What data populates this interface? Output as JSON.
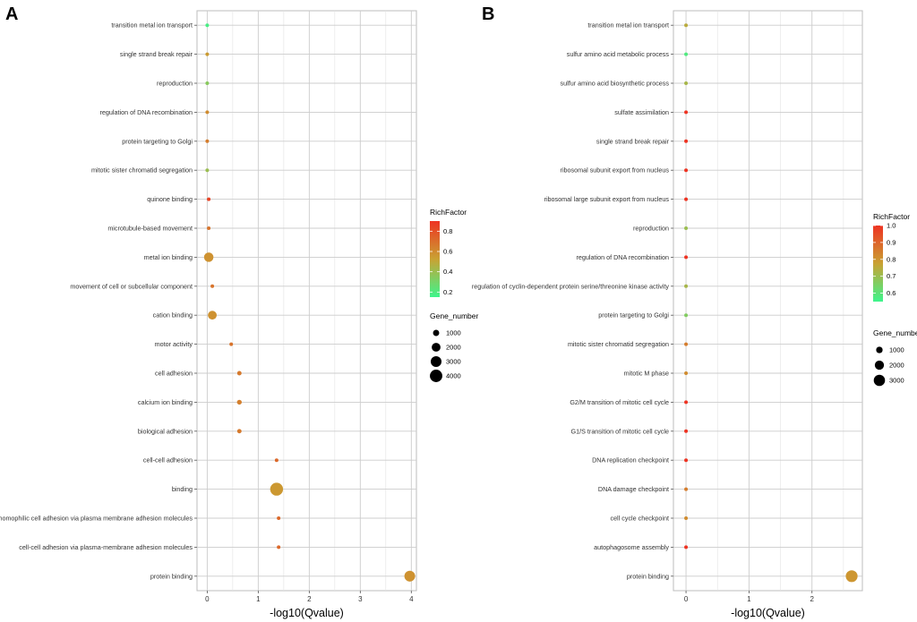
{
  "chart_data": [
    {
      "panel": "A",
      "type": "scatter",
      "xlabel": "-log10(Qvalue)",
      "ylabel": "",
      "xlim": [
        -0.2,
        4.1
      ],
      "xticks": [
        0,
        1,
        2,
        3,
        4
      ],
      "categories": [
        "transition metal ion transport",
        "single strand break repair",
        "reproduction",
        "regulation of DNA recombination",
        "protein targeting to Golgi",
        "mitotic sister chromatid segregation",
        "quinone binding",
        "microtubule-based movement",
        "metal ion binding",
        "movement of cell or subcellular component",
        "cation binding",
        "motor activity",
        "cell adhesion",
        "calcium ion binding",
        "biological adhesion",
        "cell-cell adhesion",
        "binding",
        "homophilic cell adhesion via plasma membrane adhesion molecules",
        "cell-cell adhesion via plasma-membrane adhesion molecules",
        "protein binding"
      ],
      "points": [
        {
          "term": "transition metal ion transport",
          "x": 0.0,
          "rich_factor": 0.18,
          "gene_number": 120
        },
        {
          "term": "single strand break repair",
          "x": 0.0,
          "rich_factor": 0.55,
          "gene_number": 120
        },
        {
          "term": "reproduction",
          "x": 0.0,
          "rich_factor": 0.35,
          "gene_number": 120
        },
        {
          "term": "regulation of DNA recombination",
          "x": 0.0,
          "rich_factor": 0.6,
          "gene_number": 120
        },
        {
          "term": "protein targeting to Golgi",
          "x": 0.0,
          "rich_factor": 0.65,
          "gene_number": 120
        },
        {
          "term": "mitotic sister chromatid segregation",
          "x": 0.0,
          "rich_factor": 0.4,
          "gene_number": 120
        },
        {
          "term": "quinone binding",
          "x": 0.03,
          "rich_factor": 0.85,
          "gene_number": 200
        },
        {
          "term": "microtubule-based movement",
          "x": 0.03,
          "rich_factor": 0.68,
          "gene_number": 200
        },
        {
          "term": "metal ion binding",
          "x": 0.03,
          "rich_factor": 0.58,
          "gene_number": 2300
        },
        {
          "term": "movement of cell or subcellular component",
          "x": 0.1,
          "rich_factor": 0.68,
          "gene_number": 250
        },
        {
          "term": "cation binding",
          "x": 0.1,
          "rich_factor": 0.58,
          "gene_number": 2000
        },
        {
          "term": "motor activity",
          "x": 0.47,
          "rich_factor": 0.68,
          "gene_number": 250
        },
        {
          "term": "cell adhesion",
          "x": 0.63,
          "rich_factor": 0.66,
          "gene_number": 500
        },
        {
          "term": "calcium ion binding",
          "x": 0.63,
          "rich_factor": 0.64,
          "gene_number": 600
        },
        {
          "term": "biological adhesion",
          "x": 0.63,
          "rich_factor": 0.66,
          "gene_number": 500
        },
        {
          "term": "cell-cell adhesion",
          "x": 1.36,
          "rich_factor": 0.72,
          "gene_number": 250
        },
        {
          "term": "binding",
          "x": 1.36,
          "rich_factor": 0.56,
          "gene_number": 4300
        },
        {
          "term": "homophilic cell adhesion via plasma membrane adhesion molecules",
          "x": 1.4,
          "rich_factor": 0.72,
          "gene_number": 250
        },
        {
          "term": "cell-cell adhesion via plasma-membrane adhesion molecules",
          "x": 1.4,
          "rich_factor": 0.72,
          "gene_number": 250
        },
        {
          "term": "protein binding",
          "x": 3.97,
          "rich_factor": 0.58,
          "gene_number": 3000
        }
      ],
      "color_legend": {
        "title": "RichFactor",
        "min": 0.15,
        "max": 0.9,
        "ticks": [
          0.2,
          0.4,
          0.6,
          0.8
        ],
        "low_color": "#3ef58c",
        "mid_color": "#c9a233",
        "high_color": "#ee3322"
      },
      "size_legend": {
        "title": "Gene_number",
        "ticks": [
          1000,
          2000,
          3000,
          4000
        ],
        "max_value": 4300
      },
      "legend_position": "right"
    },
    {
      "panel": "B",
      "type": "scatter",
      "xlabel": "-log10(Qvalue)",
      "ylabel": "",
      "xlim": [
        -0.2,
        2.8
      ],
      "xticks": [
        0,
        1,
        2
      ],
      "categories": [
        "transition metal ion transport",
        "sulfur amino acid metabolic process",
        "sulfur amino acid biosynthetic process",
        "sulfate assimilation",
        "single strand break repair",
        "ribosomal subunit export from nucleus",
        "ribosomal large subunit export from nucleus",
        "reproduction",
        "regulation of DNA recombination",
        "regulation of cyclin-dependent protein serine/threonine kinase activity",
        "protein targeting to Golgi",
        "mitotic sister chromatid segregation",
        "mitotic M phase",
        "G2/M transition of mitotic cell cycle",
        "G1/S transition of mitotic cell cycle",
        "DNA replication checkpoint",
        "DNA damage checkpoint",
        "cell cycle checkpoint",
        "autophagosome assembly",
        "protein binding"
      ],
      "points": [
        {
          "term": "transition metal ion transport",
          "x": 0.0,
          "rich_factor": 0.75,
          "gene_number": 100
        },
        {
          "term": "sulfur amino acid metabolic process",
          "x": 0.0,
          "rich_factor": 0.58,
          "gene_number": 100
        },
        {
          "term": "sulfur amino acid biosynthetic process",
          "x": 0.0,
          "rich_factor": 0.72,
          "gene_number": 100
        },
        {
          "term": "sulfate assimilation",
          "x": 0.0,
          "rich_factor": 1.0,
          "gene_number": 100
        },
        {
          "term": "single strand break repair",
          "x": 0.0,
          "rich_factor": 1.0,
          "gene_number": 100
        },
        {
          "term": "ribosomal subunit export from nucleus",
          "x": 0.0,
          "rich_factor": 1.0,
          "gene_number": 100
        },
        {
          "term": "ribosomal large subunit export from nucleus",
          "x": 0.0,
          "rich_factor": 1.0,
          "gene_number": 100
        },
        {
          "term": "reproduction",
          "x": 0.0,
          "rich_factor": 0.7,
          "gene_number": 100
        },
        {
          "term": "regulation of DNA recombination",
          "x": 0.0,
          "rich_factor": 1.0,
          "gene_number": 100
        },
        {
          "term": "regulation of cyclin-dependent protein serine/threonine kinase activity",
          "x": 0.0,
          "rich_factor": 0.72,
          "gene_number": 100
        },
        {
          "term": "protein targeting to Golgi",
          "x": 0.0,
          "rich_factor": 0.66,
          "gene_number": 100
        },
        {
          "term": "mitotic sister chromatid segregation",
          "x": 0.0,
          "rich_factor": 0.85,
          "gene_number": 100
        },
        {
          "term": "mitotic M phase",
          "x": 0.0,
          "rich_factor": 0.82,
          "gene_number": 100
        },
        {
          "term": "G2/M transition of mitotic cell cycle",
          "x": 0.0,
          "rich_factor": 1.0,
          "gene_number": 100
        },
        {
          "term": "G1/S transition of mitotic cell cycle",
          "x": 0.0,
          "rich_factor": 1.0,
          "gene_number": 100
        },
        {
          "term": "DNA replication checkpoint",
          "x": 0.0,
          "rich_factor": 1.0,
          "gene_number": 100
        },
        {
          "term": "DNA damage checkpoint",
          "x": 0.0,
          "rich_factor": 0.85,
          "gene_number": 100
        },
        {
          "term": "cell cycle checkpoint",
          "x": 0.0,
          "rich_factor": 0.82,
          "gene_number": 100
        },
        {
          "term": "autophagosome assembly",
          "x": 0.0,
          "rich_factor": 1.0,
          "gene_number": 100
        },
        {
          "term": "protein binding",
          "x": 2.63,
          "rich_factor": 0.8,
          "gene_number": 3300
        }
      ],
      "color_legend": {
        "title": "RichFactor",
        "min": 0.55,
        "max": 1.0,
        "ticks": [
          0.6,
          0.7,
          0.8,
          0.9,
          1.0
        ],
        "tick_labels": [
          "0.6",
          "0.7",
          "0.8",
          "0.9",
          "1.0"
        ],
        "low_color": "#3ef58c",
        "mid_color": "#c9a233",
        "high_color": "#ee3322"
      },
      "size_legend": {
        "title": "Gene_number",
        "ticks": [
          1000,
          2000,
          3000
        ],
        "max_value": 3300
      },
      "legend_position": "right"
    }
  ]
}
